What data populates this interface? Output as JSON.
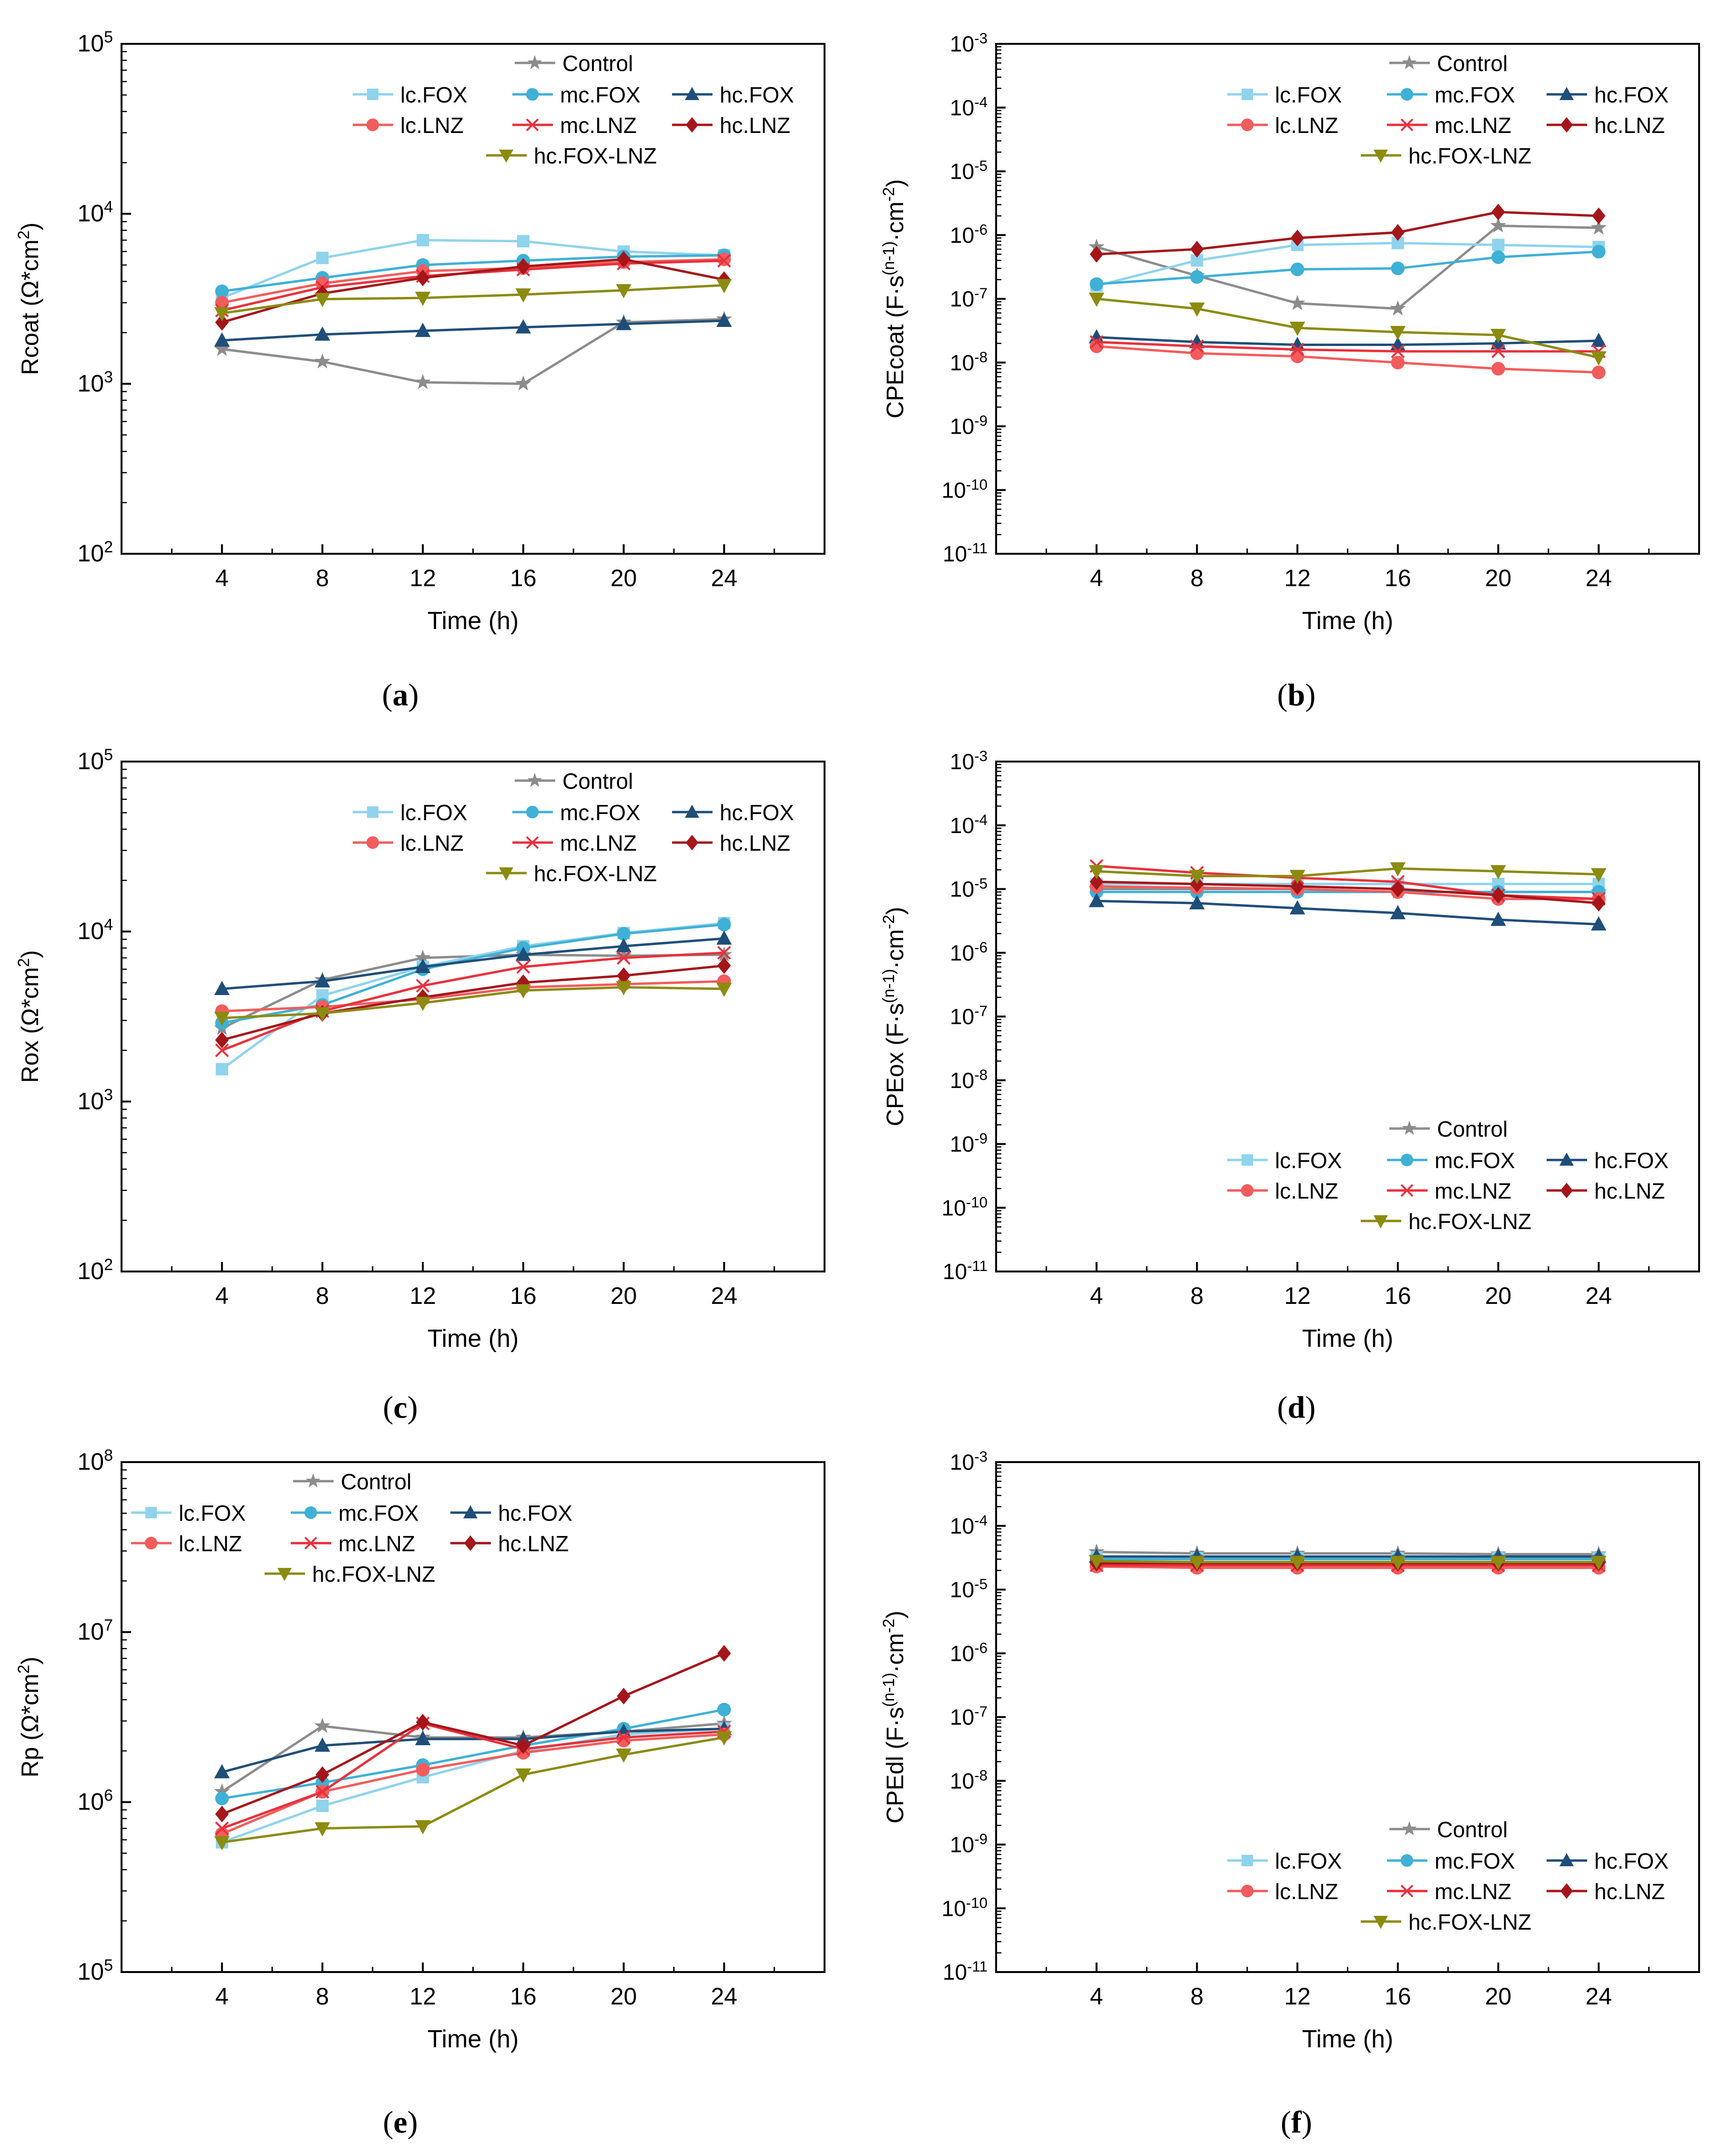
{
  "figure": {
    "captions": [
      "(a)",
      "(b)",
      "(c)",
      "(d)",
      "(e)",
      "(f)"
    ]
  },
  "legend_labels": {
    "control": "Control",
    "lc_fox": "lc.FOX",
    "mc_fox": "mc.FOX",
    "hc_fox": "hc.FOX",
    "lc_lnz": "lc.LNZ",
    "mc_lnz": "mc.LNZ",
    "hc_lnz": "hc.LNZ",
    "hc_fox_lnz": "hc.FOX-LNZ"
  },
  "series_style": {
    "control": {
      "color": "#8c8c8c",
      "marker": "star"
    },
    "lc_fox": {
      "color": "#8fd3ec",
      "marker": "square"
    },
    "mc_fox": {
      "color": "#3fb0d6",
      "marker": "circle"
    },
    "hc_fox": {
      "color": "#1f4e79",
      "marker": "triangle-up"
    },
    "lc_lnz": {
      "color": "#f25c5c",
      "marker": "circle"
    },
    "mc_lnz": {
      "color": "#e8313c",
      "marker": "cross"
    },
    "hc_lnz": {
      "color": "#a4161a",
      "marker": "diamond"
    },
    "hc_fox_lnz": {
      "color": "#8b8b10",
      "marker": "triangle-down"
    }
  },
  "chart_data": [
    {
      "id": "a",
      "type": "line",
      "yscale": "log",
      "xlabel": "Time (h)",
      "ylabel": "Rcoat (Ω*cm²)",
      "x": [
        4,
        8,
        12,
        16,
        20,
        24
      ],
      "xlim": [
        0,
        28
      ],
      "ylim_exp": [
        2,
        5
      ],
      "legend_position": "top-right",
      "series": [
        {
          "key": "control",
          "values": [
            1600,
            1350,
            1020,
            1000,
            2300,
            2400
          ]
        },
        {
          "key": "lc_fox",
          "values": [
            3200,
            5500,
            7000,
            6900,
            6000,
            5700
          ]
        },
        {
          "key": "mc_fox",
          "values": [
            3500,
            4200,
            5000,
            5300,
            5600,
            5700
          ]
        },
        {
          "key": "hc_fox",
          "values": [
            1800,
            1950,
            2050,
            2150,
            2250,
            2350
          ]
        },
        {
          "key": "lc_lnz",
          "values": [
            3000,
            3900,
            4600,
            4800,
            5200,
            5400
          ]
        },
        {
          "key": "mc_lnz",
          "values": [
            2700,
            3700,
            4300,
            4700,
            5100,
            5300
          ]
        },
        {
          "key": "hc_lnz",
          "values": [
            2300,
            3400,
            4200,
            4900,
            5400,
            4100
          ]
        },
        {
          "key": "hc_fox_lnz",
          "values": [
            2600,
            3150,
            3200,
            3350,
            3550,
            3800
          ]
        }
      ]
    },
    {
      "id": "b",
      "type": "line",
      "yscale": "log",
      "xlabel": "Time (h)",
      "ylabel": "CPEcoat (F·s^(n-1)·cm^-2)",
      "x": [
        4,
        8,
        12,
        16,
        20,
        24
      ],
      "xlim": [
        0,
        28
      ],
      "ylim_exp": [
        -11,
        -3
      ],
      "legend_position": "top-right",
      "series": [
        {
          "key": "control",
          "values": [
            6.5e-07,
            2.3e-07,
            8.5e-08,
            7e-08,
            1.4e-06,
            1.3e-06
          ]
        },
        {
          "key": "lc_fox",
          "values": [
            1.6e-07,
            4e-07,
            7e-07,
            7.5e-07,
            7e-07,
            6.5e-07
          ]
        },
        {
          "key": "mc_fox",
          "values": [
            1.7e-07,
            2.2e-07,
            2.9e-07,
            3e-07,
            4.5e-07,
            5.5e-07
          ]
        },
        {
          "key": "hc_fox",
          "values": [
            2.5e-08,
            2.1e-08,
            1.9e-08,
            1.9e-08,
            2e-08,
            2.2e-08
          ]
        },
        {
          "key": "lc_lnz",
          "values": [
            1.8e-08,
            1.4e-08,
            1.25e-08,
            1e-08,
            8e-09,
            7e-09
          ]
        },
        {
          "key": "mc_lnz",
          "values": [
            2.1e-08,
            1.8e-08,
            1.6e-08,
            1.5e-08,
            1.5e-08,
            1.5e-08
          ]
        },
        {
          "key": "hc_lnz",
          "values": [
            5e-07,
            6e-07,
            9e-07,
            1.1e-06,
            2.3e-06,
            2e-06
          ]
        },
        {
          "key": "hc_fox_lnz",
          "values": [
            1e-07,
            7e-08,
            3.5e-08,
            3e-08,
            2.7e-08,
            1.2e-08
          ]
        }
      ]
    },
    {
      "id": "c",
      "type": "line",
      "yscale": "log",
      "xlabel": "Time (h)",
      "ylabel": "Rox (Ω*cm²)",
      "x": [
        4,
        8,
        12,
        16,
        20,
        24
      ],
      "xlim": [
        0,
        28
      ],
      "ylim_exp": [
        2,
        5
      ],
      "legend_position": "top-right",
      "series": [
        {
          "key": "control",
          "values": [
            2700,
            5200,
            7000,
            7300,
            7200,
            7300
          ]
        },
        {
          "key": "lc_fox",
          "values": [
            1550,
            4200,
            6200,
            8200,
            9800,
            11200
          ]
        },
        {
          "key": "mc_fox",
          "values": [
            2900,
            3700,
            6000,
            8000,
            9700,
            11000
          ]
        },
        {
          "key": "hc_fox",
          "values": [
            4600,
            5100,
            6200,
            7300,
            8200,
            9100
          ]
        },
        {
          "key": "lc_lnz",
          "values": [
            3400,
            3600,
            4000,
            4700,
            4900,
            5100
          ]
        },
        {
          "key": "mc_lnz",
          "values": [
            2000,
            3400,
            4800,
            6200,
            7000,
            7500
          ]
        },
        {
          "key": "hc_lnz",
          "values": [
            2300,
            3300,
            4100,
            5000,
            5500,
            6300
          ]
        },
        {
          "key": "hc_fox_lnz",
          "values": [
            3100,
            3300,
            3800,
            4500,
            4700,
            4600
          ]
        }
      ]
    },
    {
      "id": "d",
      "type": "line",
      "yscale": "log",
      "xlabel": "Time (h)",
      "ylabel": "CPEox (F·s^(n-1)·cm^-2)",
      "x": [
        4,
        8,
        12,
        16,
        20,
        24
      ],
      "xlim": [
        0,
        28
      ],
      "ylim_exp": [
        -11,
        -3
      ],
      "legend_position": "bottom-right",
      "series": [
        {
          "key": "control",
          "values": [
            1e-05,
            1e-05,
            1e-05,
            9e-06,
            9e-06,
            9e-06
          ]
        },
        {
          "key": "lc_fox",
          "values": [
            1.2e-05,
            1.2e-05,
            1.2e-05,
            1.2e-05,
            1.2e-05,
            1.2e-05
          ]
        },
        {
          "key": "mc_fox",
          "values": [
            9e-06,
            9e-06,
            9e-06,
            9e-06,
            9e-06,
            9e-06
          ]
        },
        {
          "key": "hc_fox",
          "values": [
            6.5e-06,
            6e-06,
            5e-06,
            4.2e-06,
            3.3e-06,
            2.8e-06
          ]
        },
        {
          "key": "lc_lnz",
          "values": [
            1.1e-05,
            1.05e-05,
            1e-05,
            9e-06,
            7e-06,
            7e-06
          ]
        },
        {
          "key": "mc_lnz",
          "values": [
            2.3e-05,
            1.8e-05,
            1.5e-05,
            1.3e-05,
            8e-06,
            7e-06
          ]
        },
        {
          "key": "hc_lnz",
          "values": [
            1.3e-05,
            1.2e-05,
            1.1e-05,
            1e-05,
            8e-06,
            6e-06
          ]
        },
        {
          "key": "hc_fox_lnz",
          "values": [
            1.9e-05,
            1.6e-05,
            1.6e-05,
            2.1e-05,
            1.9e-05,
            1.7e-05
          ]
        }
      ]
    },
    {
      "id": "e",
      "type": "line",
      "yscale": "log",
      "xlabel": "Time (h)",
      "ylabel": "Rp (Ω*cm²)",
      "x": [
        4,
        8,
        12,
        16,
        20,
        24
      ],
      "xlim": [
        0,
        28
      ],
      "ylim_exp": [
        5,
        8
      ],
      "legend_position": "top-left",
      "series": [
        {
          "key": "control",
          "values": [
            1150000,
            2800000,
            2400000,
            2400000,
            2600000,
            2900000
          ]
        },
        {
          "key": "lc_fox",
          "values": [
            580000,
            950000,
            1400000,
            2000000,
            2500000,
            2700000
          ]
        },
        {
          "key": "mc_fox",
          "values": [
            1050000,
            1300000,
            1650000,
            2150000,
            2700000,
            3500000
          ]
        },
        {
          "key": "hc_fox",
          "values": [
            1500000,
            2150000,
            2350000,
            2350000,
            2600000,
            2700000
          ]
        },
        {
          "key": "lc_lnz",
          "values": [
            650000,
            1150000,
            1550000,
            1950000,
            2300000,
            2500000
          ]
        },
        {
          "key": "mc_lnz",
          "values": [
            700000,
            1150000,
            2900000,
            2050000,
            2400000,
            2600000
          ]
        },
        {
          "key": "hc_lnz",
          "values": [
            850000,
            1450000,
            2950000,
            2150000,
            4200000,
            7500000
          ]
        },
        {
          "key": "hc_fox_lnz",
          "values": [
            580000,
            700000,
            720000,
            1450000,
            1900000,
            2400000
          ]
        }
      ]
    },
    {
      "id": "f",
      "type": "line",
      "yscale": "log",
      "xlabel": "Time (h)",
      "ylabel": "CPEdl (F·s^(n-1)·cm^-2)",
      "x": [
        4,
        8,
        12,
        16,
        20,
        24
      ],
      "xlim": [
        0,
        28
      ],
      "ylim_exp": [
        -11,
        -3
      ],
      "legend_position": "bottom-right",
      "series": [
        {
          "key": "control",
          "values": [
            3.9e-05,
            3.7e-05,
            3.7e-05,
            3.7e-05,
            3.6e-05,
            3.6e-05
          ]
        },
        {
          "key": "lc_fox",
          "values": [
            3.2e-05,
            3.1e-05,
            3.1e-05,
            3.1e-05,
            3.1e-05,
            3.1e-05
          ]
        },
        {
          "key": "mc_fox",
          "values": [
            3e-05,
            3e-05,
            3e-05,
            3e-05,
            3e-05,
            3e-05
          ]
        },
        {
          "key": "hc_fox",
          "values": [
            3.3e-05,
            3.3e-05,
            3.3e-05,
            3.3e-05,
            3.3e-05,
            3.3e-05
          ]
        },
        {
          "key": "lc_lnz",
          "values": [
            2.3e-05,
            2.2e-05,
            2.2e-05,
            2.2e-05,
            2.2e-05,
            2.2e-05
          ]
        },
        {
          "key": "mc_lnz",
          "values": [
            2.4e-05,
            2.4e-05,
            2.4e-05,
            2.4e-05,
            2.4e-05,
            2.4e-05
          ]
        },
        {
          "key": "hc_lnz",
          "values": [
            2.6e-05,
            2.6e-05,
            2.6e-05,
            2.6e-05,
            2.6e-05,
            2.6e-05
          ]
        },
        {
          "key": "hc_fox_lnz",
          "values": [
            2.8e-05,
            2.7e-05,
            2.7e-05,
            2.7e-05,
            2.7e-05,
            2.7e-05
          ]
        }
      ]
    }
  ]
}
